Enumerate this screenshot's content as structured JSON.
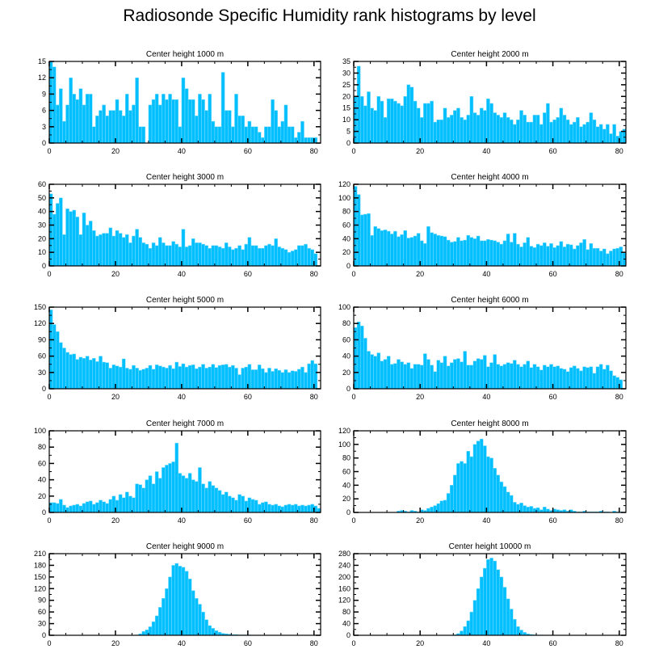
{
  "title": "Radiosonde Specific Humidity rank histograms by level",
  "colors": {
    "bar": "#00bfff",
    "bar_edge": "#7fdcff",
    "axis": "#000000"
  },
  "chart_data": [
    {
      "type": "bar",
      "title": "Center height 1000 m",
      "xlim": [
        0,
        82
      ],
      "ylim": [
        0,
        15
      ],
      "xticks": [
        0,
        20,
        40,
        60,
        80
      ],
      "yticks": [
        0,
        3,
        6,
        9,
        12,
        15
      ],
      "values": [
        15,
        14,
        7,
        10,
        4,
        7,
        12,
        9,
        8,
        10,
        7,
        9,
        9,
        3,
        5,
        6,
        7,
        5,
        6,
        6,
        8,
        6,
        5,
        9,
        6,
        7,
        12,
        3,
        3,
        0,
        7,
        8,
        9,
        7,
        9,
        8,
        9,
        8,
        8,
        3,
        12,
        10,
        8,
        8,
        5,
        9,
        8,
        6,
        9,
        4,
        3,
        3,
        13,
        6,
        6,
        3,
        9,
        5,
        5,
        3,
        4,
        3,
        3,
        2,
        1,
        3,
        3,
        8,
        6,
        3,
        4,
        7,
        3,
        3,
        1,
        2,
        4,
        1,
        1,
        1,
        1
      ]
    },
    {
      "type": "bar",
      "title": "Center height 2000 m",
      "xlim": [
        0,
        82
      ],
      "ylim": [
        0,
        35
      ],
      "xticks": [
        0,
        20,
        40,
        60,
        80
      ],
      "yticks": [
        0,
        5,
        10,
        15,
        20,
        25,
        30,
        35
      ],
      "values": [
        20,
        33,
        20,
        16,
        22,
        15,
        14,
        20,
        18,
        11,
        19,
        19,
        18,
        17,
        16,
        20,
        25,
        24,
        18,
        15,
        11,
        17,
        17,
        18,
        9,
        10,
        10,
        15,
        11,
        12,
        14,
        15,
        11,
        10,
        12,
        20,
        13,
        12,
        15,
        14,
        19,
        17,
        13,
        12,
        11,
        13,
        11,
        10,
        8,
        10,
        14,
        12,
        9,
        9,
        12,
        12,
        8,
        13,
        17,
        9,
        10,
        11,
        15,
        12,
        10,
        8,
        9,
        11,
        7,
        8,
        9,
        13,
        10,
        7,
        8,
        6,
        8,
        4,
        8,
        3,
        5,
        6
      ]
    },
    {
      "type": "bar",
      "title": "Center height 3000 m",
      "xlim": [
        0,
        82
      ],
      "ylim": [
        0,
        60
      ],
      "xticks": [
        0,
        20,
        40,
        60,
        80
      ],
      "yticks": [
        0,
        10,
        20,
        30,
        40,
        50,
        60
      ],
      "values": [
        53,
        38,
        46,
        50,
        23,
        42,
        40,
        41,
        36,
        23,
        39,
        30,
        33,
        26,
        22,
        23,
        24,
        24,
        28,
        22,
        26,
        24,
        21,
        23,
        17,
        22,
        27,
        21,
        17,
        16,
        13,
        17,
        15,
        21,
        17,
        15,
        15,
        18,
        16,
        14,
        27,
        14,
        15,
        20,
        17,
        17,
        16,
        15,
        13,
        15,
        15,
        14,
        13,
        17,
        14,
        12,
        13,
        15,
        12,
        16,
        21,
        15,
        15,
        13,
        13,
        15,
        16,
        15,
        20,
        14,
        13,
        12,
        10,
        11,
        12,
        15,
        15,
        16,
        13,
        12,
        9
      ]
    },
    {
      "type": "bar",
      "title": "Center height 4000 m",
      "xlim": [
        0,
        82
      ],
      "ylim": [
        0,
        120
      ],
      "xticks": [
        0,
        20,
        40,
        60,
        80
      ],
      "yticks": [
        0,
        20,
        40,
        60,
        80,
        100,
        120
      ],
      "values": [
        117,
        105,
        75,
        76,
        77,
        45,
        58,
        55,
        52,
        53,
        51,
        47,
        51,
        43,
        46,
        52,
        41,
        42,
        44,
        48,
        37,
        33,
        58,
        49,
        47,
        45,
        44,
        43,
        38,
        35,
        36,
        42,
        37,
        38,
        45,
        42,
        40,
        44,
        37,
        37,
        39,
        38,
        37,
        35,
        32,
        37,
        47,
        35,
        48,
        32,
        28,
        34,
        42,
        29,
        27,
        32,
        30,
        34,
        29,
        33,
        27,
        30,
        36,
        28,
        32,
        31,
        25,
        30,
        34,
        39,
        24,
        33,
        26,
        26,
        22,
        25,
        18,
        22,
        25,
        26,
        28,
        19
      ]
    },
    {
      "type": "bar",
      "title": "Center height 5000 m",
      "xlim": [
        0,
        82
      ],
      "ylim": [
        0,
        150
      ],
      "xticks": [
        0,
        20,
        40,
        60,
        80
      ],
      "yticks": [
        0,
        30,
        60,
        90,
        120,
        150
      ],
      "values": [
        145,
        118,
        105,
        85,
        75,
        67,
        63,
        64,
        54,
        58,
        56,
        60,
        53,
        56,
        50,
        60,
        49,
        48,
        38,
        44,
        42,
        40,
        55,
        38,
        36,
        43,
        38,
        34,
        36,
        38,
        43,
        36,
        44,
        42,
        40,
        38,
        43,
        37,
        49,
        41,
        46,
        40,
        43,
        44,
        37,
        40,
        45,
        38,
        40,
        45,
        39,
        43,
        44,
        45,
        40,
        43,
        38,
        26,
        38,
        40,
        45,
        35,
        35,
        44,
        37,
        30,
        38,
        32,
        37,
        34,
        30,
        35,
        30,
        33,
        32,
        36,
        40,
        30,
        46,
        52,
        46
      ]
    },
    {
      "type": "bar",
      "title": "Center height 6000 m",
      "xlim": [
        0,
        82
      ],
      "ylim": [
        0,
        100
      ],
      "xticks": [
        0,
        20,
        40,
        60,
        80
      ],
      "yticks": [
        0,
        20,
        40,
        60,
        80,
        100
      ],
      "values": [
        75,
        82,
        77,
        62,
        46,
        42,
        40,
        44,
        34,
        36,
        40,
        30,
        31,
        36,
        33,
        30,
        32,
        25,
        30,
        30,
        29,
        43,
        36,
        29,
        21,
        35,
        32,
        40,
        28,
        32,
        36,
        37,
        33,
        46,
        29,
        29,
        34,
        37,
        36,
        41,
        27,
        32,
        42,
        30,
        28,
        30,
        32,
        31,
        35,
        30,
        27,
        30,
        34,
        26,
        30,
        27,
        23,
        29,
        27,
        30,
        27,
        28,
        25,
        24,
        21,
        26,
        28,
        25,
        22,
        27,
        26,
        27,
        19,
        27,
        30,
        24,
        29,
        22,
        16,
        14,
        11
      ]
    },
    {
      "type": "bar",
      "title": "Center height 7000 m",
      "xlim": [
        0,
        82
      ],
      "ylim": [
        0,
        100
      ],
      "xticks": [
        0,
        20,
        40,
        60,
        80
      ],
      "yticks": [
        0,
        20,
        40,
        60,
        80,
        100
      ],
      "values": [
        12,
        12,
        11,
        16,
        9,
        6,
        8,
        9,
        10,
        8,
        11,
        13,
        14,
        10,
        12,
        15,
        13,
        11,
        16,
        20,
        15,
        22,
        18,
        25,
        20,
        18,
        35,
        34,
        30,
        40,
        45,
        35,
        50,
        42,
        55,
        58,
        60,
        62,
        85,
        48,
        45,
        42,
        48,
        40,
        38,
        55,
        35,
        30,
        38,
        33,
        30,
        27,
        22,
        25,
        20,
        18,
        15,
        22,
        20,
        14,
        18,
        16,
        15,
        10,
        12,
        13,
        10,
        9,
        10,
        8,
        7,
        9,
        10,
        9,
        10,
        8,
        9,
        8,
        9,
        10,
        8,
        5
      ]
    },
    {
      "type": "bar",
      "title": "Center height 8000 m",
      "xlim": [
        0,
        82
      ],
      "ylim": [
        0,
        120
      ],
      "xticks": [
        0,
        20,
        40,
        60,
        80
      ],
      "yticks": [
        0,
        20,
        40,
        60,
        80,
        100,
        120
      ],
      "values": [
        0,
        0,
        0,
        0,
        0,
        0,
        0,
        0,
        0,
        0,
        0,
        0,
        0,
        2,
        3,
        2,
        1,
        3,
        2,
        1,
        4,
        3,
        6,
        8,
        10,
        13,
        17,
        18,
        28,
        40,
        55,
        72,
        75,
        72,
        90,
        82,
        100,
        105,
        108,
        98,
        82,
        80,
        65,
        55,
        45,
        38,
        30,
        25,
        15,
        12,
        14,
        10,
        8,
        9,
        6,
        7,
        4,
        8,
        5,
        3,
        5,
        4,
        3,
        4,
        2,
        4,
        2,
        1,
        1,
        2,
        1,
        1,
        1,
        1,
        2,
        1,
        1,
        0,
        2,
        1,
        1
      ]
    },
    {
      "type": "bar",
      "title": "Center height 9000 m",
      "xlim": [
        0,
        82
      ],
      "ylim": [
        0,
        210
      ],
      "xticks": [
        0,
        20,
        40,
        60,
        80
      ],
      "yticks": [
        0,
        30,
        60,
        90,
        120,
        150,
        180,
        210
      ],
      "values": [
        0,
        0,
        0,
        0,
        0,
        0,
        0,
        0,
        0,
        0,
        0,
        0,
        0,
        0,
        0,
        0,
        0,
        0,
        0,
        0,
        0,
        0,
        0,
        0,
        0,
        0,
        1,
        4,
        10,
        14,
        22,
        35,
        50,
        72,
        95,
        120,
        150,
        180,
        185,
        178,
        175,
        165,
        145,
        115,
        95,
        80,
        60,
        40,
        25,
        18,
        12,
        8,
        5,
        4,
        3,
        2,
        2,
        1,
        1,
        1,
        1,
        0,
        0,
        0,
        0,
        0,
        0,
        0,
        0,
        0,
        0,
        0,
        0,
        0,
        0,
        0,
        0,
        0,
        0,
        0,
        0
      ]
    },
    {
      "type": "bar",
      "title": "Center height 10000 m",
      "xlim": [
        0,
        82
      ],
      "ylim": [
        0,
        280
      ],
      "xticks": [
        0,
        20,
        40,
        60,
        80
      ],
      "yticks": [
        0,
        40,
        80,
        120,
        160,
        200,
        240,
        280
      ],
      "values": [
        0,
        0,
        0,
        0,
        0,
        0,
        0,
        0,
        0,
        0,
        0,
        0,
        0,
        0,
        0,
        0,
        0,
        0,
        0,
        0,
        0,
        0,
        0,
        0,
        0,
        0,
        0,
        0,
        0,
        0,
        2,
        6,
        15,
        30,
        50,
        80,
        120,
        160,
        200,
        230,
        260,
        265,
        255,
        225,
        200,
        165,
        125,
        90,
        55,
        30,
        18,
        10,
        5,
        3,
        2,
        1,
        1,
        0,
        0,
        0,
        0,
        0,
        0,
        0,
        0,
        0,
        0,
        0,
        0,
        0,
        0,
        0,
        0,
        0,
        0,
        0,
        0,
        0,
        0,
        0,
        0
      ]
    }
  ]
}
